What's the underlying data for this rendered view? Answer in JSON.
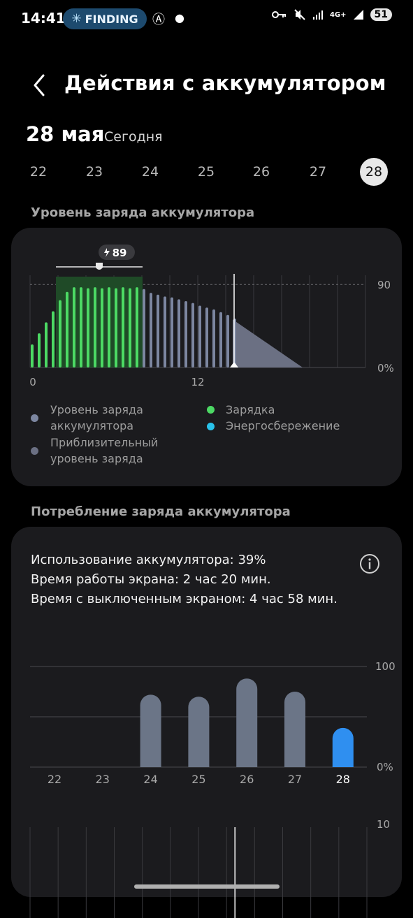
{
  "status_bar": {
    "time": "14:41",
    "finding_label": "FINDING",
    "battery_level": "51",
    "network_label": "4G+"
  },
  "header": {
    "title": "Действия с аккумулятором"
  },
  "date": {
    "main": "28 мая",
    "sub": "Сегодня",
    "days": [
      "22",
      "23",
      "24",
      "25",
      "26",
      "27",
      "28"
    ],
    "selected_day": "28"
  },
  "battery_level_section": {
    "title": "Уровень заряда аккумулятора",
    "charge_badge": "89",
    "y_top_label": "90",
    "y_bottom_label": "0%",
    "x_labels": [
      "0",
      "12"
    ],
    "legend": [
      {
        "label": "Уровень заряда аккумулятора",
        "color": "#7c86a0"
      },
      {
        "label": "Зарядка",
        "color": "#4cd964"
      },
      {
        "label": "Приблизительный уровень заряда",
        "color": "#6b7083"
      },
      {
        "label": "Энергосбережение",
        "color": "#29c2ea"
      }
    ]
  },
  "consumption_section": {
    "title": "Потребление заряда аккумулятора",
    "usage_line": "Использование аккумулятора: 39%",
    "screen_on_line": "Время работы экрана: 2 час 20 мин.",
    "screen_off_line": "Время с выключенным экраном: 4 час 58 мин.",
    "y_top_label": "100",
    "y_bottom_label": "0%",
    "lower_chart_top_label": "10"
  },
  "chart_data": [
    {
      "type": "bar",
      "title": "",
      "x_unit": "hour",
      "x_ticks": [
        "0",
        "12"
      ],
      "ylim": [
        0,
        100
      ],
      "y_ticks": [
        "90",
        "0%"
      ],
      "series": [
        {
          "name": "Зарядка",
          "color": "#4cd964",
          "x": [
            0,
            0.5,
            1,
            1.5,
            2,
            2.5,
            3,
            3.5,
            4,
            4.5,
            5,
            5.5,
            6,
            6.5,
            7,
            7.5
          ],
          "values": [
            25,
            37,
            49,
            61,
            73,
            82,
            87,
            87,
            86,
            87,
            86,
            87,
            86,
            87,
            86,
            87
          ]
        },
        {
          "name": "Уровень заряда аккумулятора",
          "color": "#7c86a0",
          "x": [
            8,
            8.5,
            9,
            9.5,
            10,
            10.5,
            11,
            11.5,
            12,
            12.5,
            13,
            13.5,
            14,
            14.5
          ],
          "values": [
            85,
            81,
            79,
            77,
            76,
            74,
            72,
            70,
            67,
            65,
            63,
            60,
            57,
            53
          ]
        },
        {
          "name": "Приблизительный уровень заряда",
          "color": "#6b7083",
          "x": [
            14.5,
            19.5
          ],
          "values": [
            52,
            0
          ]
        }
      ],
      "current_time_hour": 14.6,
      "charge_peak": 89
    },
    {
      "type": "bar",
      "title": "",
      "categories": [
        "22",
        "23",
        "24",
        "25",
        "26",
        "27",
        "28"
      ],
      "ylim": [
        0,
        100
      ],
      "y_ticks": [
        "100",
        "0%"
      ],
      "series": [
        {
          "name": "",
          "values": [
            0,
            0,
            72,
            70,
            88,
            75,
            39
          ]
        }
      ],
      "highlight_category": "28",
      "colors": {
        "default": "#6b7587",
        "highlight": "#2f8ff0"
      }
    }
  ]
}
